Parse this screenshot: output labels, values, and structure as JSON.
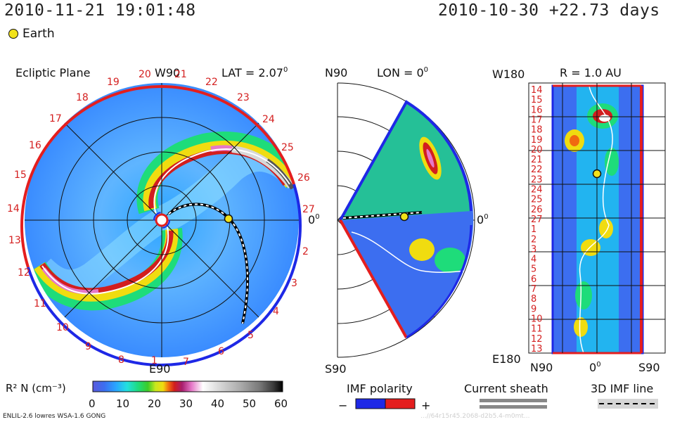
{
  "header": {
    "datetime": "2010-11-21 19:01:48",
    "reference": "2010-10-30 +22.73 days",
    "legend_earth": "Earth"
  },
  "ecliptic": {
    "title": "Ecliptic Plane",
    "top_label": "W90",
    "bottom_label": "E90",
    "right_label": "0",
    "lat_label": "LAT = 2.07",
    "lat_sup": "0",
    "ticks_red": [
      "20",
      "21",
      "22",
      "23",
      "24",
      "25",
      "26",
      "27",
      "19",
      "18",
      "17",
      "16",
      "15",
      "14",
      "13",
      "12",
      "11",
      "10",
      "9",
      "8",
      "7",
      "6",
      "5",
      "4",
      "3",
      "2",
      "1"
    ]
  },
  "meridional": {
    "top_label": "N90",
    "bottom_label": "S90",
    "lon_label": "LON = 0",
    "lon_sup": "0",
    "right_label": "0"
  },
  "map": {
    "top_left": "W180",
    "r_label": "R = 1.0 AU",
    "bottom_left": "E180",
    "bottom_labels": [
      "N90",
      "0",
      "S90"
    ],
    "rows": [
      "14",
      "15",
      "16",
      "17",
      "18",
      "19",
      "20",
      "21",
      "22",
      "23",
      "24",
      "25",
      "26",
      "27",
      "1",
      "2",
      "3",
      "4",
      "5",
      "6",
      "7",
      "8",
      "9",
      "10",
      "11",
      "12",
      "13"
    ]
  },
  "colorbar": {
    "label": "R² N (cm⁻³)",
    "ticks": [
      "0",
      "10",
      "20",
      "30",
      "40",
      "50",
      "60"
    ],
    "colors": [
      "#5a5adc",
      "#3c6ef0",
      "#2aa4ff",
      "#22e0e0",
      "#1edc7a",
      "#3ccc28",
      "#c8e81e",
      "#f0dc10",
      "#f06a10",
      "#d21e1e",
      "#a81e6e",
      "#e678c8",
      "#ffffff",
      "#d2d2d2",
      "#aaaaaa",
      "#787878",
      "#3c3c3c",
      "#000000"
    ]
  },
  "legends": {
    "imf_title": "IMF polarity",
    "imf_minus": "−",
    "imf_plus": "+",
    "sheath_title": "Current sheath",
    "imf3d_title": "3D IMF line"
  },
  "footer": {
    "left": "ENLIL-2.6 lowres WSA-1.6 GONG",
    "right": "...//64r15r45.2068-d2b5.4-m0mt..."
  },
  "colors": {
    "red": "#e41e1e",
    "blue": "#1e28e6",
    "tick_red": "#d42020"
  }
}
